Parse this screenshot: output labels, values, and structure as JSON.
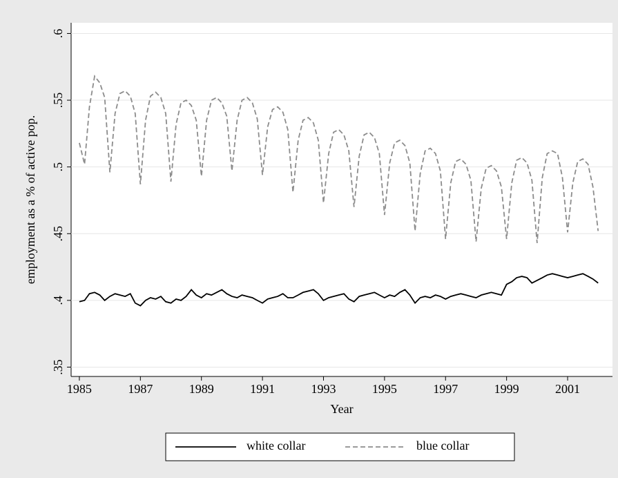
{
  "chart_data": {
    "type": "line",
    "y_label": "employment as a % of active pop.",
    "x_label": "Year",
    "x": [
      1985,
      1985.17,
      1985.33,
      1985.5,
      1985.67,
      1985.83,
      1986,
      1986.17,
      1986.33,
      1986.5,
      1986.67,
      1986.83,
      1987,
      1987.17,
      1987.33,
      1987.5,
      1987.67,
      1987.83,
      1988,
      1988.17,
      1988.33,
      1988.5,
      1988.67,
      1988.83,
      1989,
      1989.17,
      1989.33,
      1989.5,
      1989.67,
      1989.83,
      1990,
      1990.17,
      1990.33,
      1990.5,
      1990.67,
      1990.83,
      1991,
      1991.17,
      1991.33,
      1991.5,
      1991.67,
      1991.83,
      1992,
      1992.17,
      1992.33,
      1992.5,
      1992.67,
      1992.83,
      1993,
      1993.17,
      1993.33,
      1993.5,
      1993.67,
      1993.83,
      1994,
      1994.17,
      1994.33,
      1994.5,
      1994.67,
      1994.83,
      1995,
      1995.17,
      1995.33,
      1995.5,
      1995.67,
      1995.83,
      1996,
      1996.17,
      1996.33,
      1996.5,
      1996.67,
      1996.83,
      1997,
      1997.17,
      1997.33,
      1997.5,
      1997.67,
      1997.83,
      1998,
      1998.17,
      1998.33,
      1998.5,
      1998.67,
      1998.83,
      1999,
      1999.17,
      1999.33,
      1999.5,
      1999.67,
      1999.83,
      2000,
      2000.17,
      2000.33,
      2000.5,
      2000.67,
      2000.83,
      2001,
      2001.17,
      2001.33,
      2001.5,
      2001.67,
      2001.83,
      2002
    ],
    "series": [
      {
        "name": "white collar",
        "color": "#000000",
        "linestyle": "solid",
        "values": [
          0.399,
          0.4,
          0.405,
          0.406,
          0.404,
          0.4,
          0.403,
          0.405,
          0.404,
          0.403,
          0.405,
          0.398,
          0.396,
          0.4,
          0.402,
          0.401,
          0.403,
          0.399,
          0.398,
          0.401,
          0.4,
          0.403,
          0.408,
          0.404,
          0.402,
          0.405,
          0.404,
          0.406,
          0.408,
          0.405,
          0.403,
          0.402,
          0.404,
          0.403,
          0.402,
          0.4,
          0.398,
          0.401,
          0.402,
          0.403,
          0.405,
          0.402,
          0.402,
          0.404,
          0.406,
          0.407,
          0.408,
          0.405,
          0.4,
          0.402,
          0.403,
          0.404,
          0.405,
          0.401,
          0.399,
          0.403,
          0.404,
          0.405,
          0.406,
          0.404,
          0.402,
          0.404,
          0.403,
          0.406,
          0.408,
          0.404,
          0.398,
          0.402,
          0.403,
          0.402,
          0.404,
          0.403,
          0.401,
          0.403,
          0.404,
          0.405,
          0.404,
          0.403,
          0.402,
          0.404,
          0.405,
          0.406,
          0.405,
          0.404,
          0.412,
          0.414,
          0.417,
          0.418,
          0.417,
          0.413,
          0.415,
          0.417,
          0.419,
          0.42,
          0.419,
          0.418,
          0.417,
          0.418,
          0.419,
          0.42,
          0.418,
          0.416,
          0.413
        ]
      },
      {
        "name": "blue collar",
        "color": "#8c8c8c",
        "linestyle": "dashed",
        "values": [
          0.518,
          0.502,
          0.545,
          0.568,
          0.563,
          0.552,
          0.496,
          0.54,
          0.555,
          0.557,
          0.553,
          0.54,
          0.487,
          0.535,
          0.553,
          0.556,
          0.552,
          0.54,
          0.489,
          0.532,
          0.548,
          0.55,
          0.546,
          0.535,
          0.493,
          0.535,
          0.55,
          0.552,
          0.548,
          0.538,
          0.497,
          0.535,
          0.55,
          0.552,
          0.548,
          0.536,
          0.494,
          0.53,
          0.543,
          0.545,
          0.541,
          0.528,
          0.481,
          0.52,
          0.535,
          0.537,
          0.533,
          0.52,
          0.473,
          0.51,
          0.526,
          0.528,
          0.524,
          0.512,
          0.47,
          0.508,
          0.524,
          0.526,
          0.522,
          0.51,
          0.464,
          0.503,
          0.518,
          0.52,
          0.516,
          0.503,
          0.452,
          0.495,
          0.512,
          0.514,
          0.51,
          0.497,
          0.446,
          0.488,
          0.504,
          0.506,
          0.502,
          0.49,
          0.444,
          0.484,
          0.499,
          0.501,
          0.497,
          0.485,
          0.446,
          0.488,
          0.505,
          0.507,
          0.503,
          0.49,
          0.443,
          0.492,
          0.51,
          0.512,
          0.51,
          0.492,
          0.451,
          0.488,
          0.504,
          0.506,
          0.502,
          0.485,
          0.452
        ]
      }
    ],
    "xlim": [
      1984.73,
      2002.47
    ],
    "xticks": [
      1985,
      1987,
      1989,
      1991,
      1993,
      1995,
      1997,
      1999,
      2001
    ],
    "ylim": [
      0.343,
      0.608
    ],
    "yticks": [
      {
        "value": 0.35,
        "label": ".35"
      },
      {
        "value": 0.4,
        "label": ".4"
      },
      {
        "value": 0.45,
        "label": ".45"
      },
      {
        "value": 0.5,
        "label": ".5"
      },
      {
        "value": 0.55,
        "label": ".55"
      },
      {
        "value": 0.6,
        "label": ".6"
      }
    ],
    "grid": true,
    "legend": "bottom"
  }
}
